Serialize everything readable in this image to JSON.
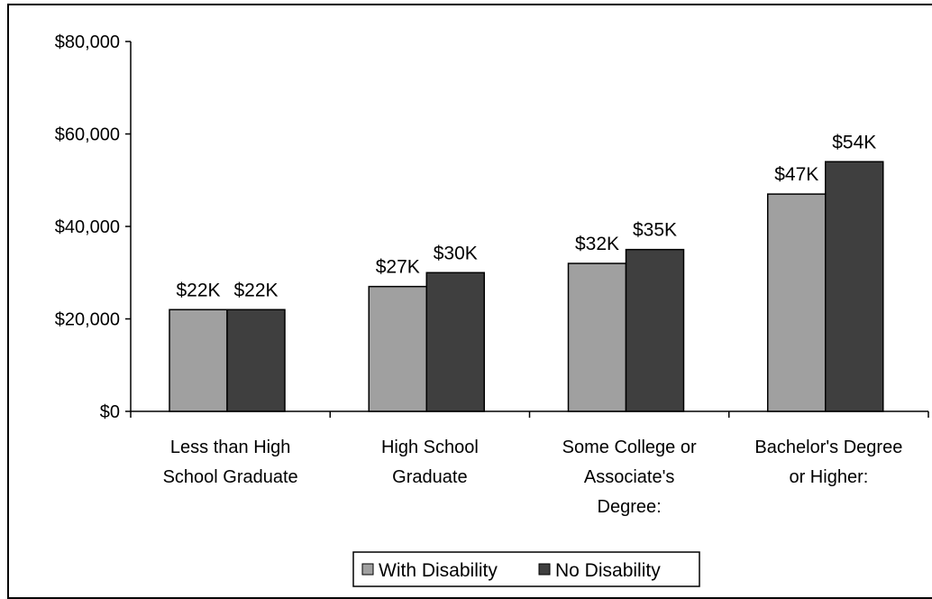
{
  "chart_data": {
    "type": "bar",
    "categories": [
      [
        "Less than High",
        "School Graduate"
      ],
      [
        "High School",
        "Graduate"
      ],
      [
        "Some College or",
        "Associate's",
        "Degree:"
      ],
      [
        "Bachelor's Degree",
        "or Higher:"
      ]
    ],
    "series": [
      {
        "name": "With Disability",
        "values": [
          22000,
          27000,
          32000,
          47000
        ],
        "labels": [
          "$22K",
          "$27K",
          "$32K",
          "$47K"
        ],
        "color": "#a0a0a0"
      },
      {
        "name": "No Disability",
        "values": [
          22000,
          30000,
          35000,
          54000
        ],
        "labels": [
          "$22K",
          "$30K",
          "$35K",
          "$54K"
        ],
        "color": "#3f3f3f"
      }
    ],
    "y_ticks": [
      "$0",
      "$20,000",
      "$40,000",
      "$60,000",
      "$80,000"
    ],
    "ylim": [
      0,
      80000
    ],
    "title": "",
    "xlabel": "",
    "ylabel": "",
    "grid": false,
    "legend_position": "bottom"
  }
}
